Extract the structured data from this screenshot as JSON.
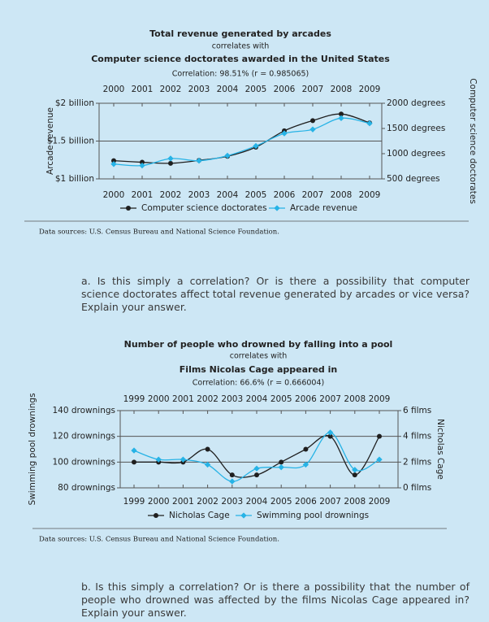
{
  "chart_data": [
    {
      "type": "line",
      "title": "Total revenue generated by arcades",
      "subtitle": "correlates with",
      "title2": "Computer science doctorates awarded in the United States",
      "correlation": "Correlation: 98.51% (r = 0.985065)",
      "categories": [
        "2000",
        "2001",
        "2002",
        "2003",
        "2004",
        "2005",
        "2006",
        "2007",
        "2008",
        "2009"
      ],
      "y_label": "Arcade revenue",
      "y2_label": "Computer science doctorates",
      "ylim": [
        1000000000,
        2000000000
      ],
      "yticks": [
        {
          "value": 1000000000,
          "label": "$1 billion"
        },
        {
          "value": 1500000000,
          "label": "$1.5 billion"
        },
        {
          "value": 2000000000,
          "label": "$2 billion"
        }
      ],
      "y2lim": [
        500,
        2000
      ],
      "y2ticks": [
        {
          "value": 500,
          "label": "500 degrees"
        },
        {
          "value": 1000,
          "label": "1000 degrees"
        },
        {
          "value": 1500,
          "label": "1500 degrees"
        },
        {
          "value": 2000,
          "label": "2000 degrees"
        }
      ],
      "grid": true,
      "series": [
        {
          "name": "Computer science doctorates",
          "color": "#1f1f1f",
          "marker": "circle",
          "axis": "y2",
          "values": [
            861,
            830,
            809,
            867,
            948,
            1129,
            1453,
            1656,
            1787,
            1611
          ]
        },
        {
          "name": "Arcade revenue",
          "color": "#27b3e6",
          "marker": "diamond",
          "values": [
            1196000000,
            1176000000,
            1269000000,
            1240000000,
            1307000000,
            1435000000,
            1601000000,
            1654000000,
            1803000000,
            1734000000
          ]
        }
      ]
    },
    {
      "type": "line",
      "title": "Number of people who drowned by falling into a pool",
      "subtitle": "correlates with",
      "title2": "Films Nicolas Cage appeared in",
      "correlation": "Correlation: 66.6% (r = 0.666004)",
      "categories": [
        "1999",
        "2000",
        "2001",
        "2002",
        "2003",
        "2004",
        "2005",
        "2006",
        "2007",
        "2008",
        "2009"
      ],
      "y_label": "Swimming pool drownings",
      "y2_label": "Nicholas Cage",
      "ylim": [
        80,
        140
      ],
      "yticks": [
        {
          "value": 80,
          "label": "80 drownings"
        },
        {
          "value": 100,
          "label": "100 drownings"
        },
        {
          "value": 120,
          "label": "120 drownings"
        },
        {
          "value": 140,
          "label": "140 drownings"
        }
      ],
      "y2lim": [
        0,
        6
      ],
      "y2ticks": [
        {
          "value": 0,
          "label": "0 films"
        },
        {
          "value": 2,
          "label": "2 films"
        },
        {
          "value": 4,
          "label": "4 films"
        },
        {
          "value": 6,
          "label": "6 films"
        }
      ],
      "grid": true,
      "series": [
        {
          "name": "Nicholas Cage",
          "color": "#1f1f1f",
          "marker": "circle",
          "axis": "y2",
          "values": [
            2,
            2,
            2,
            3,
            1,
            1,
            2,
            3,
            4,
            1,
            4
          ]
        },
        {
          "name": "Swimming pool drownings",
          "color": "#27b3e6",
          "marker": "diamond",
          "values": [
            109,
            102,
            102,
            98,
            85,
            95,
            96,
            98,
            123,
            94,
            102
          ]
        }
      ]
    }
  ],
  "sources": [
    "Data sources: U.S. Census Bureau and National Science Foundation.",
    "Data sources: U.S. Census Bureau and National Science Foundation."
  ],
  "questions": [
    "a. Is this simply a correlation? Or is there a possibility that computer science doctorates affect total revenue generated by arcades or vice versa? Explain your answer.",
    "b. Is this simply a correlation? Or is there a possibility that the number of people who drowned was affected by the films Nicolas Cage appeared in? Explain your answer."
  ]
}
